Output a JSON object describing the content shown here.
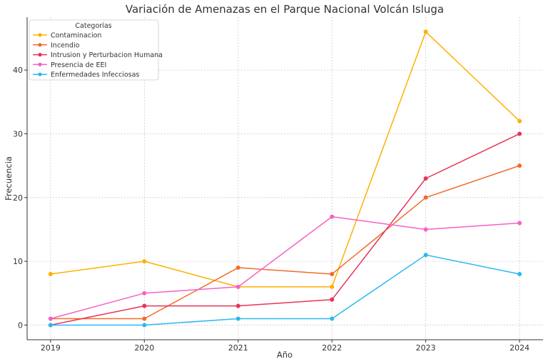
{
  "chart_data": {
    "type": "line",
    "title": "Variación de Amenazas en el Parque Nacional Volcán Isluga",
    "xlabel": "Año",
    "ylabel": "Frecuencia",
    "x": [
      2019,
      2020,
      2021,
      2022,
      2023,
      2024
    ],
    "x_ticks": [
      "2019",
      "2020",
      "2021",
      "2022",
      "2023",
      "2024"
    ],
    "y_ticks": [
      0,
      10,
      20,
      30,
      40
    ],
    "xlim": [
      2018.75,
      2024.25
    ],
    "ylim": [
      -2.3,
      48.3
    ],
    "grid": true,
    "legend": {
      "title": "Categorías",
      "placement": "top-left"
    },
    "series": [
      {
        "name": "Contaminacion",
        "color": "#FFB000",
        "values": [
          8,
          10,
          6,
          6,
          46,
          32
        ]
      },
      {
        "name": "Incendio",
        "color": "#F26B2A",
        "values": [
          1,
          1,
          9,
          8,
          20,
          25
        ]
      },
      {
        "name": "Intrusion y Perturbacion Humana",
        "color": "#E8335A",
        "values": [
          0,
          3,
          3,
          4,
          23,
          30
        ]
      },
      {
        "name": "Presencia de EEI",
        "color": "#F561C6",
        "values": [
          1,
          5,
          6,
          17,
          15,
          16
        ]
      },
      {
        "name": "Enfermedades Infecciosas",
        "color": "#2BB8F2",
        "values": [
          0,
          0,
          1,
          1,
          11,
          8
        ]
      }
    ]
  }
}
